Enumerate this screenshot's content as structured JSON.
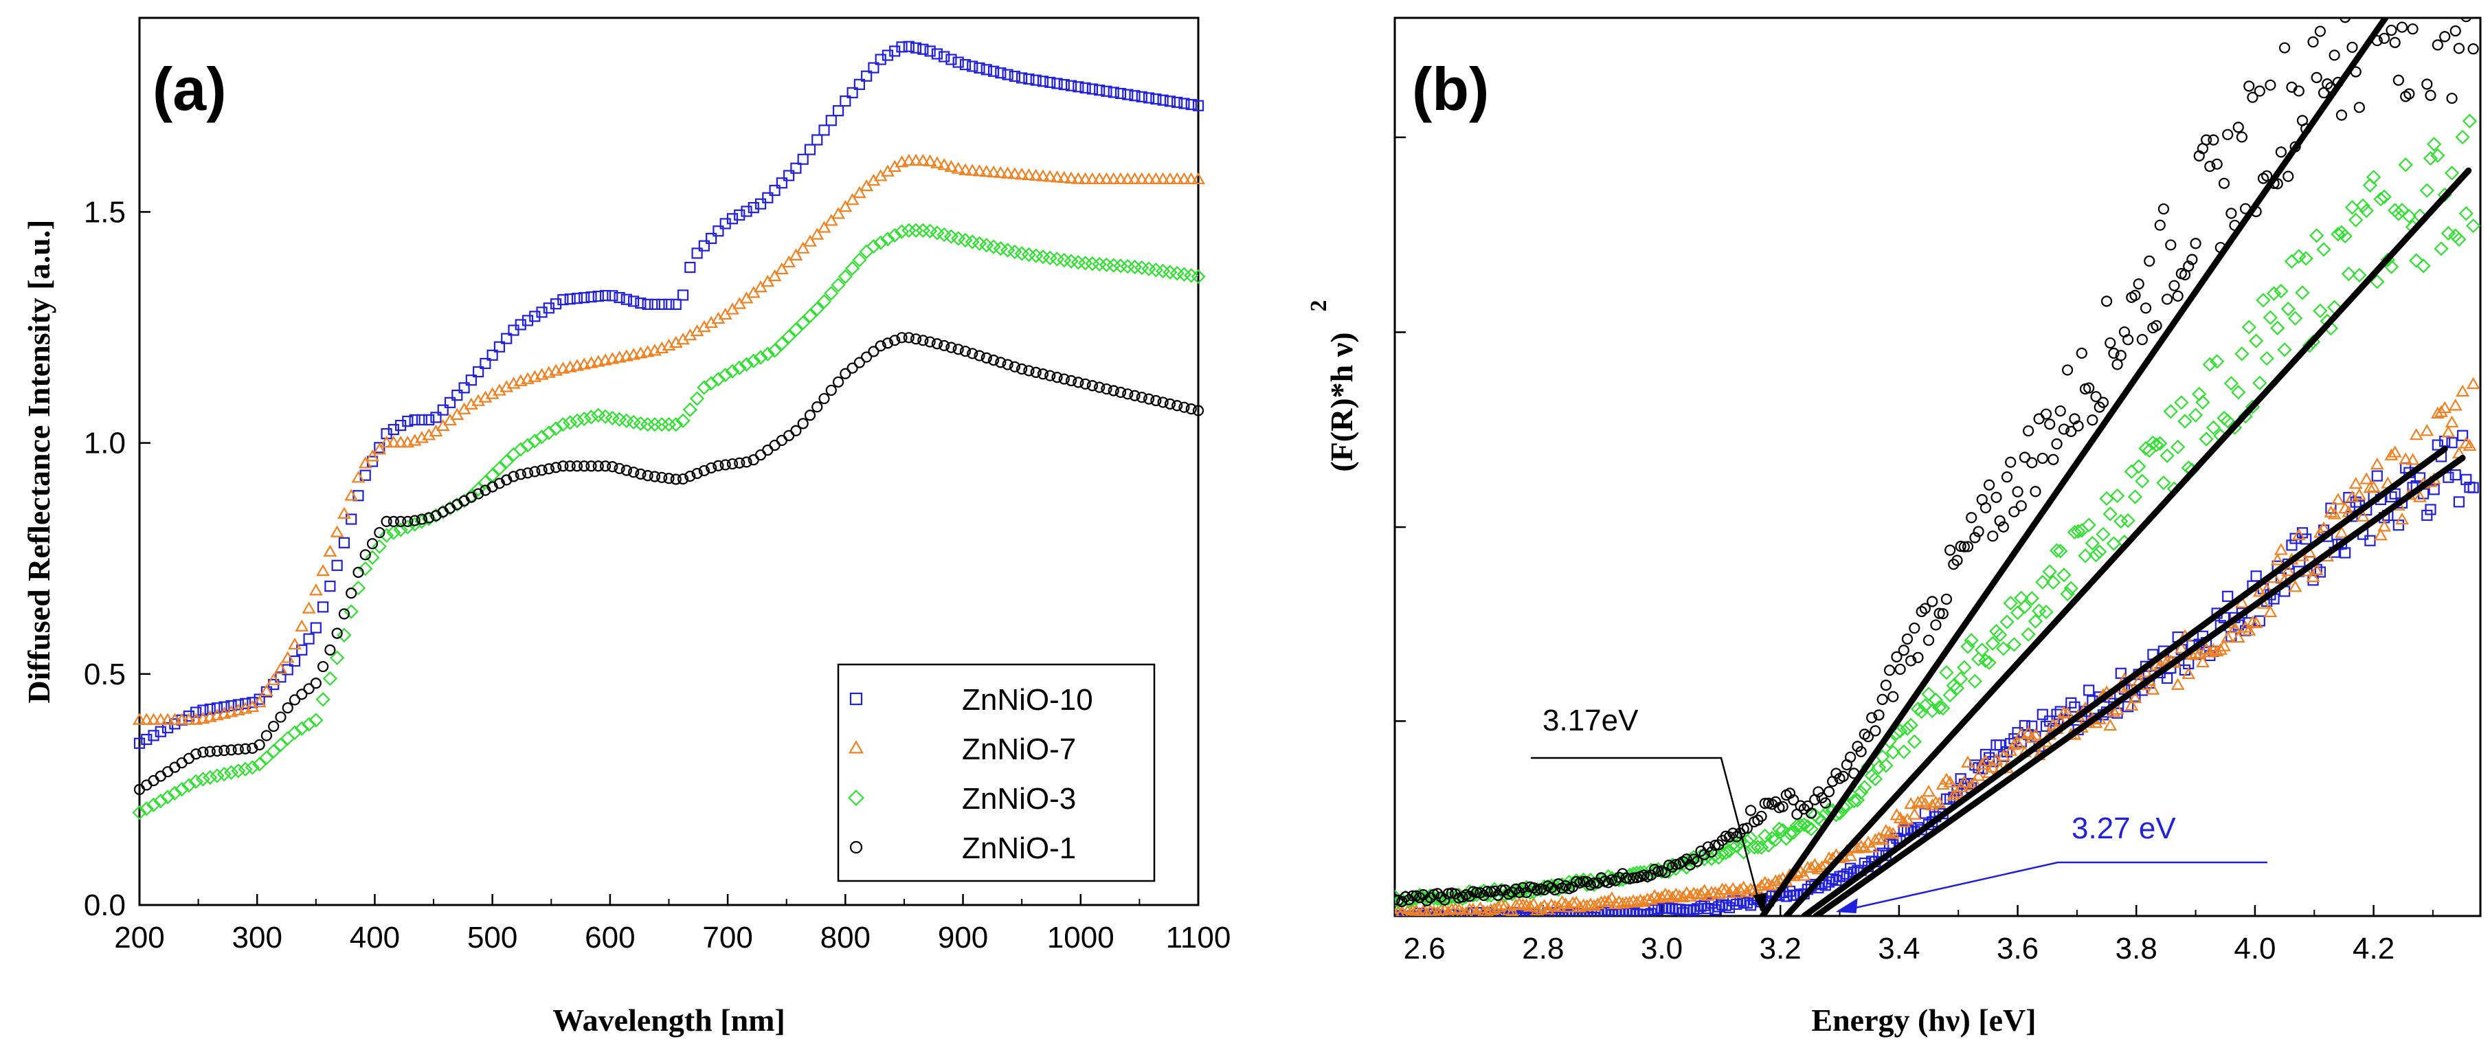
{
  "chart_data": [
    {
      "panel": "(a)",
      "type": "scatter",
      "title": "",
      "xlabel": "Wavelength [nm]",
      "ylabel": "Diffused Reflectance Intensity [a.u.]",
      "xlim": [
        200,
        1100
      ],
      "ylim": [
        0.0,
        1.92
      ],
      "xticks": [
        200,
        300,
        400,
        500,
        600,
        700,
        800,
        900,
        1000,
        1100
      ],
      "xtick_labels": [
        "200",
        "300",
        "400",
        "500",
        "600",
        "700",
        "800",
        "900",
        "1000",
        "1100"
      ],
      "yticks": [
        0.0,
        0.5,
        1.0,
        1.5
      ],
      "ytick_labels": [
        "0.0",
        "0.5",
        "1.0",
        "1.5"
      ],
      "legend_position": "bottom-right",
      "series": [
        {
          "name": "ZnNiO-10",
          "color": "#2020e0",
          "marker": "square",
          "x": [
            200,
            250,
            300,
            330,
            350,
            370,
            390,
            410,
            430,
            450,
            480,
            520,
            560,
            600,
            630,
            660,
            670,
            700,
            730,
            760,
            800,
            830,
            850,
            870,
            900,
            950,
            1000,
            1050,
            1100
          ],
          "y": [
            0.35,
            0.42,
            0.44,
            0.52,
            0.6,
            0.75,
            0.92,
            1.02,
            1.05,
            1.05,
            1.13,
            1.25,
            1.31,
            1.32,
            1.3,
            1.3,
            1.4,
            1.48,
            1.52,
            1.6,
            1.74,
            1.83,
            1.86,
            1.85,
            1.82,
            1.79,
            1.77,
            1.75,
            1.73
          ]
        },
        {
          "name": "ZnNiO-7",
          "color": "#f08020",
          "marker": "triangle",
          "x": [
            200,
            250,
            300,
            330,
            350,
            370,
            390,
            410,
            430,
            450,
            480,
            520,
            560,
            600,
            640,
            660,
            700,
            740,
            780,
            820,
            850,
            870,
            900,
            950,
            1000,
            1050,
            1100
          ],
          "y": [
            0.4,
            0.4,
            0.43,
            0.55,
            0.68,
            0.82,
            0.95,
            1.0,
            1.0,
            1.02,
            1.08,
            1.13,
            1.16,
            1.18,
            1.2,
            1.22,
            1.28,
            1.36,
            1.46,
            1.56,
            1.61,
            1.61,
            1.59,
            1.58,
            1.57,
            1.57,
            1.57
          ]
        },
        {
          "name": "ZnNiO-3",
          "color": "#30e030",
          "marker": "diamond",
          "x": [
            200,
            250,
            300,
            330,
            350,
            370,
            390,
            410,
            430,
            450,
            480,
            520,
            560,
            590,
            630,
            660,
            680,
            700,
            740,
            780,
            820,
            850,
            870,
            900,
            950,
            1000,
            1050,
            1100
          ],
          "y": [
            0.2,
            0.27,
            0.3,
            0.37,
            0.4,
            0.55,
            0.72,
            0.8,
            0.82,
            0.84,
            0.88,
            0.98,
            1.04,
            1.06,
            1.04,
            1.04,
            1.12,
            1.15,
            1.2,
            1.3,
            1.42,
            1.46,
            1.46,
            1.44,
            1.41,
            1.39,
            1.38,
            1.36
          ]
        },
        {
          "name": "ZnNiO-1",
          "color": "#000000",
          "marker": "circle",
          "x": [
            200,
            250,
            300,
            330,
            350,
            370,
            390,
            410,
            430,
            450,
            480,
            520,
            560,
            600,
            630,
            660,
            690,
            720,
            760,
            800,
            830,
            850,
            870,
            900,
            950,
            1000,
            1050,
            1100
          ],
          "y": [
            0.25,
            0.33,
            0.34,
            0.44,
            0.48,
            0.6,
            0.75,
            0.83,
            0.83,
            0.84,
            0.88,
            0.93,
            0.95,
            0.95,
            0.93,
            0.92,
            0.95,
            0.96,
            1.03,
            1.15,
            1.21,
            1.23,
            1.22,
            1.2,
            1.16,
            1.13,
            1.1,
            1.07
          ]
        }
      ]
    },
    {
      "panel": "(b)",
      "type": "scatter",
      "title": "",
      "xlabel": "Energy (hν) [eV]",
      "ylabel": "(F(R)*h   ν)",
      "ylabel_sup": "2",
      "xlim": [
        2.55,
        4.38
      ],
      "ylim": [
        0,
        1
      ],
      "xticks": [
        2.6,
        2.8,
        3.0,
        3.2,
        3.4,
        3.6,
        3.8,
        4.0,
        4.2
      ],
      "xtick_labels": [
        "2.6",
        "2.8",
        "3.0",
        "3.2",
        "3.4",
        "3.6",
        "3.8",
        "4.0",
        "4.2"
      ],
      "yticks": [
        0.0,
        0.217,
        0.433,
        0.65,
        0.867
      ],
      "annotations": [
        {
          "text": "3.17eV",
          "color": "#000000",
          "x": 3.17
        },
        {
          "text": "3.27 eV",
          "color": "#2020e0",
          "x": 3.27
        }
      ],
      "tangents": [
        {
          "x0": 3.17,
          "x1": 4.22,
          "y1": 1.0
        },
        {
          "x0": 3.21,
          "x1": 4.36,
          "y1": 0.83
        },
        {
          "x0": 3.26,
          "x1": 4.35,
          "y1": 0.51
        },
        {
          "x0": 3.24,
          "x1": 4.32,
          "y1": 0.52
        }
      ],
      "series": [
        {
          "name": "ZnNiO-10",
          "color": "#2020e0",
          "marker": "square",
          "x": [
            2.6,
            2.8,
            3.0,
            3.15,
            3.25,
            3.35,
            3.45,
            3.55,
            3.65,
            3.75,
            3.85,
            3.95,
            4.05,
            4.15,
            4.25,
            4.35
          ],
          "y": [
            0.0,
            0.0,
            0.005,
            0.015,
            0.03,
            0.06,
            0.11,
            0.17,
            0.21,
            0.24,
            0.28,
            0.33,
            0.38,
            0.43,
            0.47,
            0.5
          ]
        },
        {
          "name": "ZnNiO-7",
          "color": "#f08020",
          "marker": "triangle",
          "x": [
            2.6,
            2.8,
            3.0,
            3.15,
            3.25,
            3.35,
            3.45,
            3.55,
            3.65,
            3.75,
            3.85,
            3.95,
            4.05,
            4.15,
            4.25,
            4.35
          ],
          "y": [
            0.005,
            0.01,
            0.02,
            0.03,
            0.05,
            0.08,
            0.13,
            0.17,
            0.2,
            0.23,
            0.27,
            0.32,
            0.38,
            0.44,
            0.48,
            0.56
          ]
        },
        {
          "name": "ZnNiO-3",
          "color": "#30e030",
          "marker": "diamond",
          "x": [
            2.6,
            2.8,
            3.0,
            3.1,
            3.2,
            3.3,
            3.4,
            3.5,
            3.6,
            3.7,
            3.8,
            3.9,
            4.0,
            4.1,
            4.2,
            4.3,
            4.35
          ],
          "y": [
            0.02,
            0.03,
            0.05,
            0.07,
            0.09,
            0.12,
            0.19,
            0.27,
            0.33,
            0.4,
            0.47,
            0.55,
            0.62,
            0.7,
            0.76,
            0.8,
            0.82
          ]
        },
        {
          "name": "ZnNiO-1",
          "color": "#000000",
          "marker": "circle",
          "x": [
            2.6,
            2.8,
            3.0,
            3.05,
            3.1,
            3.15,
            3.2,
            3.25,
            3.3,
            3.35,
            3.4,
            3.5,
            3.6,
            3.7,
            3.8,
            3.9,
            4.0,
            4.1,
            4.2
          ],
          "y": [
            0.02,
            0.03,
            0.05,
            0.06,
            0.08,
            0.11,
            0.13,
            0.12,
            0.15,
            0.2,
            0.28,
            0.39,
            0.49,
            0.58,
            0.68,
            0.78,
            0.86,
            0.94,
            1.0
          ]
        }
      ]
    }
  ]
}
